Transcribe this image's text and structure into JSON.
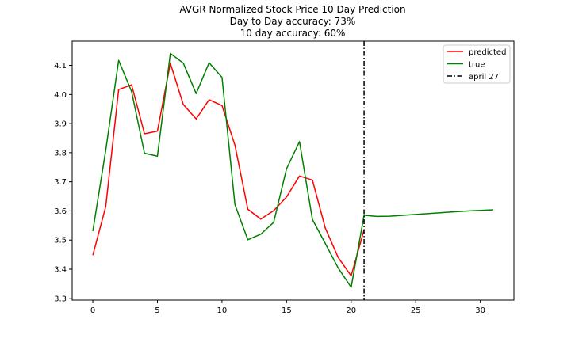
{
  "chart_data": {
    "type": "line",
    "title_lines": [
      "AVGR Normalized Stock Price 10 Day Prediction",
      "Day to Day accuracy: 73%",
      "10 day accuracy: 60%"
    ],
    "xlim": [
      -1.6,
      32.6
    ],
    "ylim": [
      3.294,
      4.183
    ],
    "xticks": [
      0,
      5,
      10,
      15,
      20,
      25,
      30
    ],
    "yticks": [
      3.3,
      3.4,
      3.5,
      3.6,
      3.7,
      3.8,
      3.9,
      4.0,
      4.1
    ],
    "xtick_labels": [
      "0",
      "5",
      "10",
      "15",
      "20",
      "25",
      "30"
    ],
    "ytick_labels": [
      "3.3",
      "3.4",
      "3.5",
      "3.6",
      "3.7",
      "3.8",
      "3.9",
      "4.0",
      "4.1"
    ],
    "series": [
      {
        "name": "predicted",
        "color": "#ff0000",
        "x": [
          0,
          1,
          2,
          3,
          4,
          5,
          6,
          7,
          8,
          9,
          10,
          11,
          12,
          13,
          14,
          15,
          16,
          17,
          18,
          19,
          20,
          21
        ],
        "y": [
          3.448,
          3.615,
          4.017,
          4.033,
          3.865,
          3.874,
          4.107,
          3.966,
          3.916,
          3.982,
          3.962,
          3.826,
          3.606,
          3.572,
          3.601,
          3.648,
          3.72,
          3.706,
          3.541,
          3.44,
          3.377,
          3.535
        ]
      },
      {
        "name": "true",
        "color": "#008000",
        "x": [
          0,
          1,
          2,
          3,
          4,
          5,
          6,
          7,
          8,
          9,
          10,
          11,
          12,
          13,
          14,
          15,
          16,
          17,
          18,
          19,
          20,
          21,
          22,
          23,
          24,
          25,
          26,
          27,
          28,
          29,
          30,
          31
        ],
        "y": [
          3.531,
          3.809,
          4.117,
          4.01,
          3.798,
          3.788,
          4.141,
          4.108,
          4.003,
          4.109,
          4.059,
          3.622,
          3.501,
          3.52,
          3.561,
          3.745,
          3.838,
          3.571,
          3.488,
          3.404,
          3.338,
          3.585,
          3.581,
          3.582,
          3.585,
          3.588,
          3.591,
          3.594,
          3.597,
          3.6,
          3.602,
          3.604
        ]
      }
    ],
    "vline": {
      "x": 21,
      "label": "april 27",
      "color": "#000000",
      "style": "dash-dot"
    },
    "legend": {
      "placement": "top-right",
      "entries": [
        "predicted",
        "true",
        "april 27"
      ]
    },
    "grid": false
  }
}
